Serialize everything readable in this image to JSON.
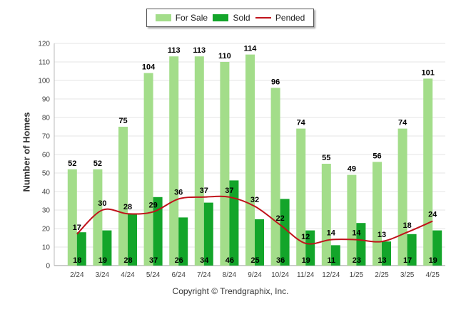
{
  "legend": {
    "for_sale_label": "For Sale",
    "sold_label": "Sold",
    "pended_label": "Pended"
  },
  "colors": {
    "for_sale": "#a3dd8a",
    "sold": "#13a52a",
    "pended": "#c0121b"
  },
  "footer": {
    "copyright": "Copyright © Trendgraphix, Inc."
  },
  "chart_data": {
    "type": "bar",
    "ylabel": "Number of Homes",
    "ylim": [
      0,
      120
    ],
    "yticks": [
      0,
      10,
      20,
      30,
      40,
      50,
      60,
      70,
      80,
      90,
      100,
      110,
      120
    ],
    "grid": true,
    "legend_position": "top-center",
    "categories": [
      "2/24",
      "3/24",
      "4/24",
      "5/24",
      "6/24",
      "7/24",
      "8/24",
      "9/24",
      "10/24",
      "11/24",
      "12/24",
      "1/25",
      "2/25",
      "3/25",
      "4/25"
    ],
    "series": [
      {
        "name": "For Sale",
        "type": "bar",
        "values": [
          52,
          52,
          75,
          104,
          113,
          113,
          110,
          114,
          96,
          74,
          55,
          49,
          56,
          74,
          101
        ]
      },
      {
        "name": "Sold",
        "type": "bar",
        "values": [
          18,
          19,
          28,
          37,
          26,
          34,
          46,
          25,
          36,
          19,
          11,
          23,
          13,
          17,
          19
        ]
      },
      {
        "name": "Pended",
        "type": "line",
        "values": [
          17,
          30,
          28,
          29,
          36,
          37,
          37,
          32,
          22,
          12,
          14,
          14,
          13,
          18,
          24
        ]
      }
    ]
  }
}
